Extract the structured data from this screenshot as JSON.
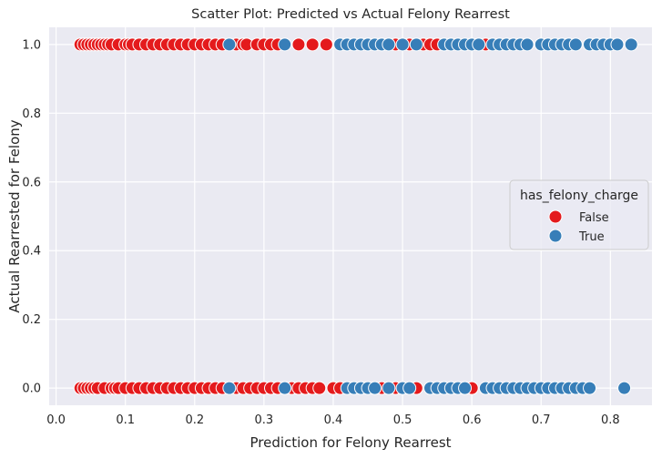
{
  "chart_data": {
    "type": "scatter",
    "title": "Scatter Plot: Predicted vs Actual Felony Rearrest",
    "xlabel": "Prediction for Felony Rearrest",
    "ylabel": "Actual Rearrested for Felony",
    "xlim": [
      -0.01,
      0.86
    ],
    "ylim": [
      -0.05,
      1.05
    ],
    "xticks": [
      "0.0",
      "0.1",
      "0.2",
      "0.3",
      "0.4",
      "0.5",
      "0.6",
      "0.7",
      "0.8"
    ],
    "yticks": [
      "0.0",
      "0.2",
      "0.4",
      "0.6",
      "0.8",
      "1.0"
    ],
    "grid": true,
    "legend": {
      "title": "has_felony_charge",
      "placement": "center-right",
      "entries": [
        {
          "label": "False",
          "color": "#e41a1c"
        },
        {
          "label": "True",
          "color": "#377eb8"
        }
      ]
    },
    "series": [
      {
        "name": "False",
        "color": "#e41a1c",
        "points": [
          [
            0.035,
            1
          ],
          [
            0.04,
            1
          ],
          [
            0.045,
            1
          ],
          [
            0.05,
            1
          ],
          [
            0.055,
            1
          ],
          [
            0.06,
            1
          ],
          [
            0.065,
            1
          ],
          [
            0.07,
            1
          ],
          [
            0.075,
            1
          ],
          [
            0.08,
            1
          ],
          [
            0.09,
            1
          ],
          [
            0.1,
            1
          ],
          [
            0.105,
            1
          ],
          [
            0.11,
            1
          ],
          [
            0.12,
            1
          ],
          [
            0.13,
            1
          ],
          [
            0.14,
            1
          ],
          [
            0.15,
            1
          ],
          [
            0.16,
            1
          ],
          [
            0.17,
            1
          ],
          [
            0.18,
            1
          ],
          [
            0.19,
            1
          ],
          [
            0.2,
            1
          ],
          [
            0.21,
            1
          ],
          [
            0.22,
            1
          ],
          [
            0.23,
            1
          ],
          [
            0.24,
            1
          ],
          [
            0.26,
            1
          ],
          [
            0.27,
            1
          ],
          [
            0.275,
            1
          ],
          [
            0.29,
            1
          ],
          [
            0.3,
            1
          ],
          [
            0.31,
            1
          ],
          [
            0.32,
            1
          ],
          [
            0.35,
            1
          ],
          [
            0.37,
            1
          ],
          [
            0.39,
            1
          ],
          [
            0.42,
            1
          ],
          [
            0.45,
            1
          ],
          [
            0.47,
            1
          ],
          [
            0.49,
            1
          ],
          [
            0.51,
            1
          ],
          [
            0.53,
            1
          ],
          [
            0.54,
            1
          ],
          [
            0.55,
            1
          ],
          [
            0.56,
            1
          ],
          [
            0.62,
            1
          ],
          [
            0.035,
            0
          ],
          [
            0.04,
            0
          ],
          [
            0.045,
            0
          ],
          [
            0.05,
            0
          ],
          [
            0.055,
            0
          ],
          [
            0.06,
            0
          ],
          [
            0.07,
            0
          ],
          [
            0.08,
            0
          ],
          [
            0.085,
            0
          ],
          [
            0.09,
            0
          ],
          [
            0.1,
            0
          ],
          [
            0.11,
            0
          ],
          [
            0.12,
            0
          ],
          [
            0.13,
            0
          ],
          [
            0.14,
            0
          ],
          [
            0.15,
            0
          ],
          [
            0.16,
            0
          ],
          [
            0.17,
            0
          ],
          [
            0.18,
            0
          ],
          [
            0.19,
            0
          ],
          [
            0.2,
            0
          ],
          [
            0.21,
            0
          ],
          [
            0.22,
            0
          ],
          [
            0.23,
            0
          ],
          [
            0.24,
            0
          ],
          [
            0.26,
            0
          ],
          [
            0.27,
            0
          ],
          [
            0.28,
            0
          ],
          [
            0.29,
            0
          ],
          [
            0.3,
            0
          ],
          [
            0.31,
            0
          ],
          [
            0.32,
            0
          ],
          [
            0.34,
            0
          ],
          [
            0.35,
            0
          ],
          [
            0.36,
            0
          ],
          [
            0.37,
            0
          ],
          [
            0.38,
            0
          ],
          [
            0.4,
            0
          ],
          [
            0.41,
            0
          ],
          [
            0.47,
            0
          ],
          [
            0.49,
            0
          ],
          [
            0.52,
            0
          ],
          [
            0.6,
            0
          ]
        ]
      },
      {
        "name": "True",
        "color": "#377eb8",
        "points": [
          [
            0.25,
            1
          ],
          [
            0.33,
            1
          ],
          [
            0.41,
            1
          ],
          [
            0.42,
            1
          ],
          [
            0.43,
            1
          ],
          [
            0.44,
            1
          ],
          [
            0.45,
            1
          ],
          [
            0.46,
            1
          ],
          [
            0.47,
            1
          ],
          [
            0.48,
            1
          ],
          [
            0.5,
            1
          ],
          [
            0.52,
            1
          ],
          [
            0.56,
            1
          ],
          [
            0.57,
            1
          ],
          [
            0.58,
            1
          ],
          [
            0.59,
            1
          ],
          [
            0.6,
            1
          ],
          [
            0.61,
            1
          ],
          [
            0.63,
            1
          ],
          [
            0.64,
            1
          ],
          [
            0.65,
            1
          ],
          [
            0.66,
            1
          ],
          [
            0.67,
            1
          ],
          [
            0.68,
            1
          ],
          [
            0.7,
            1
          ],
          [
            0.71,
            1
          ],
          [
            0.72,
            1
          ],
          [
            0.73,
            1
          ],
          [
            0.74,
            1
          ],
          [
            0.75,
            1
          ],
          [
            0.77,
            1
          ],
          [
            0.78,
            1
          ],
          [
            0.79,
            1
          ],
          [
            0.8,
            1
          ],
          [
            0.81,
            1
          ],
          [
            0.83,
            1
          ],
          [
            0.25,
            0
          ],
          [
            0.33,
            0
          ],
          [
            0.42,
            0
          ],
          [
            0.43,
            0
          ],
          [
            0.44,
            0
          ],
          [
            0.45,
            0
          ],
          [
            0.46,
            0
          ],
          [
            0.48,
            0
          ],
          [
            0.5,
            0
          ],
          [
            0.51,
            0
          ],
          [
            0.54,
            0
          ],
          [
            0.55,
            0
          ],
          [
            0.56,
            0
          ],
          [
            0.57,
            0
          ],
          [
            0.58,
            0
          ],
          [
            0.59,
            0
          ],
          [
            0.62,
            0
          ],
          [
            0.63,
            0
          ],
          [
            0.64,
            0
          ],
          [
            0.65,
            0
          ],
          [
            0.66,
            0
          ],
          [
            0.67,
            0
          ],
          [
            0.68,
            0
          ],
          [
            0.69,
            0
          ],
          [
            0.7,
            0
          ],
          [
            0.71,
            0
          ],
          [
            0.72,
            0
          ],
          [
            0.73,
            0
          ],
          [
            0.74,
            0
          ],
          [
            0.75,
            0
          ],
          [
            0.76,
            0
          ],
          [
            0.77,
            0
          ],
          [
            0.82,
            0
          ]
        ]
      }
    ]
  }
}
